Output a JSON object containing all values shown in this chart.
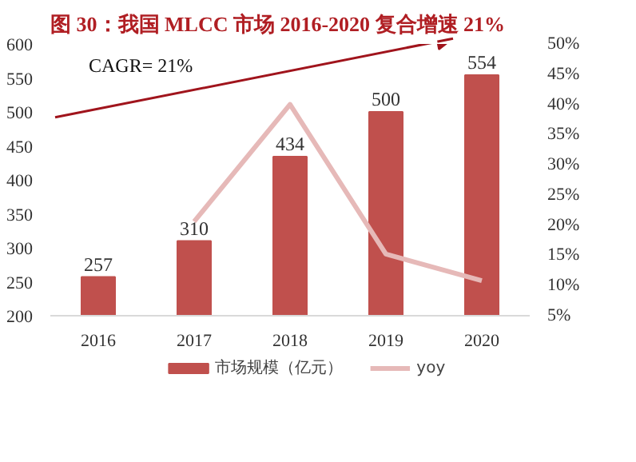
{
  "chart_data": {
    "type": "bar",
    "title": "图 30：我国 MLCC 市场 2016-2020 复合增速 21%",
    "categories": [
      "2016",
      "2017",
      "2018",
      "2019",
      "2020"
    ],
    "series": [
      {
        "name": "市场规模（亿元）",
        "type": "bar",
        "color": "#c0504d",
        "values": [
          257,
          310,
          434,
          500,
          554
        ],
        "data_labels": true
      },
      {
        "name": "yoy",
        "type": "line",
        "axis": "y2",
        "color": "#e6b9b8",
        "values": [
          null,
          20.6,
          40.0,
          15.2,
          10.8
        ]
      }
    ],
    "ylim": [
      200,
      600
    ],
    "yticks": [
      200,
      250,
      300,
      350,
      400,
      450,
      500,
      550,
      600
    ],
    "y2lim": [
      5,
      50
    ],
    "y2ticks": [
      {
        "value": 5,
        "label": "5%"
      },
      {
        "value": 10,
        "label": "10%"
      },
      {
        "value": 15,
        "label": "15%"
      },
      {
        "value": 20,
        "label": "20%"
      },
      {
        "value": 25,
        "label": "25%"
      },
      {
        "value": 30,
        "label": "30%"
      },
      {
        "value": 35,
        "label": "35%"
      },
      {
        "value": 40,
        "label": "40%"
      },
      {
        "value": 45,
        "label": "45%"
      },
      {
        "value": 50,
        "label": "50%"
      }
    ],
    "annotations": [
      "CAGR= 21%"
    ],
    "legend": "bottom",
    "grid": false
  }
}
